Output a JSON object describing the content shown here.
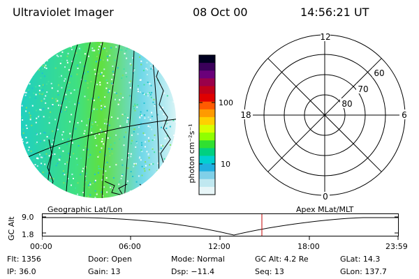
{
  "header": {
    "instrument": "Ultraviolet Imager",
    "date": "08 Oct 00",
    "time": "14:56:21 UT"
  },
  "colorbar": {
    "label": "photon cm⁻²s⁻¹",
    "ticks": [
      "100",
      "10"
    ],
    "colors": [
      "#000020",
      "#3a005a",
      "#6a007a",
      "#9a004a",
      "#c0001a",
      "#e00000",
      "#ff5a00",
      "#ff9a00",
      "#ffd000",
      "#d8ff00",
      "#90ff00",
      "#30e030",
      "#00d080",
      "#00d0d0",
      "#20b0e0",
      "#80d0e8",
      "#c0e8f0",
      "#e8f6f8"
    ]
  },
  "polar_plot": {
    "labels": {
      "top": "12",
      "bottom": "0",
      "left": "18",
      "right": "6",
      "lat60": "60",
      "lat70": "70",
      "lat80": "80"
    }
  },
  "timeline": {
    "left_label": "Geographic Lat/Lon",
    "right_label": "Apex MLat/MLT",
    "axis_title": "GC Alt",
    "y_ticks": [
      "9.0",
      "1.8"
    ],
    "x_ticks": [
      "00:00",
      "06:00",
      "12:00",
      "18:00",
      "23:59"
    ],
    "current_marker_color": "#c00000"
  },
  "status": {
    "flt": "Flt: 1356",
    "ip": "IP: 36.0",
    "door": "Door: Open",
    "gain": "Gain: 13",
    "mode": "Mode: Normal",
    "dsp": "Dsp:  −11.4",
    "gcalt": "GC Alt: 4.2 Re",
    "seq": "Seq: 13",
    "glat": "GLat:  14.3",
    "glon": "GLon: 137.7"
  }
}
